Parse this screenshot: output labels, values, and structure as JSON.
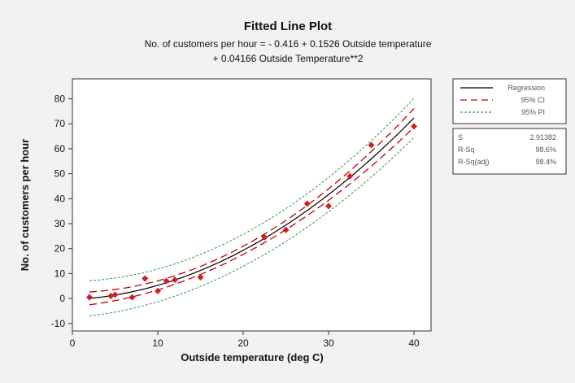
{
  "chart_data": {
    "type": "scatter",
    "title": "Fitted Line Plot",
    "subtitle_line1": "No. of customers per hour = - 0.416 + 0.1526 Outside temperature",
    "subtitle_line2": "+ 0.04166 Outside Temperature**2",
    "xlabel": "Outside temperature (deg C)",
    "ylabel": "No. of customers per hour",
    "xlim": [
      0,
      42
    ],
    "ylim": [
      -13,
      88
    ],
    "xticks": [
      0,
      10,
      20,
      30,
      40
    ],
    "yticks": [
      -10,
      0,
      10,
      20,
      30,
      40,
      50,
      60,
      70,
      80
    ],
    "grid": false,
    "legend_placement": "right",
    "regression": {
      "intercept": -0.416,
      "linear": 0.1526,
      "quadratic": 0.04166
    },
    "fit_range": [
      2,
      40
    ],
    "points": [
      {
        "x": 2,
        "y": 0.5
      },
      {
        "x": 4.5,
        "y": 1
      },
      {
        "x": 5,
        "y": 1.5
      },
      {
        "x": 7,
        "y": 0.5
      },
      {
        "x": 8.5,
        "y": 8
      },
      {
        "x": 10,
        "y": 3
      },
      {
        "x": 11,
        "y": 7
      },
      {
        "x": 12,
        "y": 7.5
      },
      {
        "x": 15,
        "y": 8.5
      },
      {
        "x": 22.5,
        "y": 24.5
      },
      {
        "x": 25,
        "y": 27.5
      },
      {
        "x": 27.5,
        "y": 38
      },
      {
        "x": 30,
        "y": 37
      },
      {
        "x": 32.5,
        "y": 49
      },
      {
        "x": 35,
        "y": 61.5
      },
      {
        "x": 40,
        "y": 69
      }
    ],
    "legend": [
      {
        "label": "Regression",
        "color": "#000000",
        "style": "solid"
      },
      {
        "label": "95% CI",
        "color": "#c00000",
        "style": "dashed"
      },
      {
        "label": "95% PI",
        "color": "#2e9e3a",
        "style": "dotted"
      }
    ],
    "stats": [
      {
        "label": "S",
        "value": "2.91382"
      },
      {
        "label": "R-Sq",
        "value": "98.6%"
      },
      {
        "label": "R-Sq(adj)",
        "value": "98.4%"
      }
    ],
    "colors": {
      "points": "#cc1f26",
      "regression": "#000000",
      "ci": "#c00000",
      "pi": "#2e9e3a"
    }
  }
}
